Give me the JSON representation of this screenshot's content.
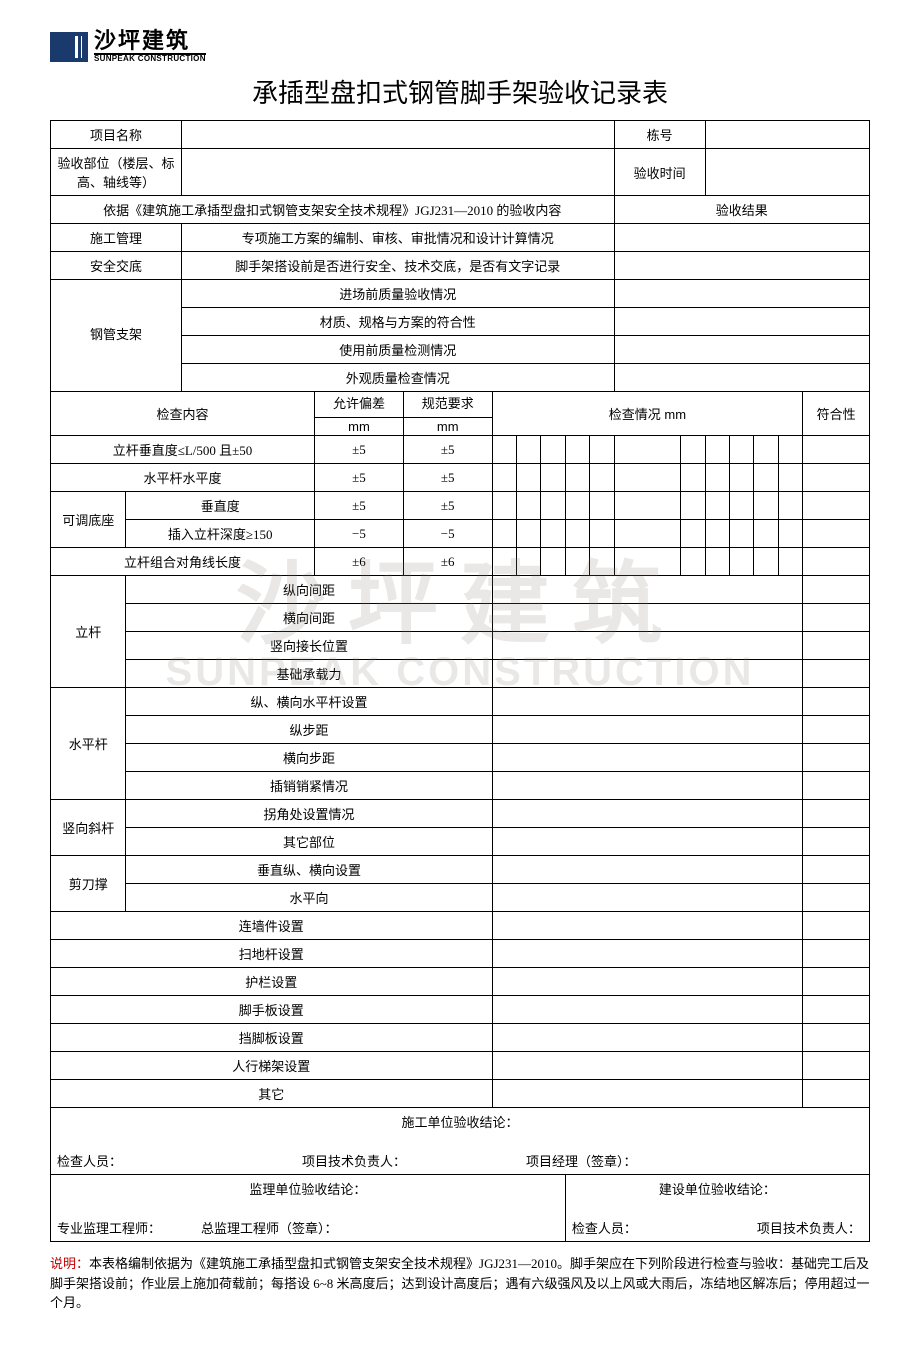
{
  "logo": {
    "cn": "沙坪建筑",
    "en": "SUNPEAK CONSTRUCTION"
  },
  "title": "承插型盘扣式钢管脚手架验收记录表",
  "header": {
    "project_name_label": "项目名称",
    "building_no_label": "栋号",
    "accept_part_label": "验收部位（楼层、标高、轴线等）",
    "accept_time_label": "验收时间",
    "basis_label": "依据《建筑施工承插型盘扣式钢管支架安全技术规程》JGJ231—2010 的验收内容",
    "accept_result_label": "验收结果"
  },
  "mgmt": {
    "construction_mgmt_label": "施工管理",
    "construction_mgmt_desc": "专项施工方案的编制、审核、审批情况和设计计算情况",
    "safety_brief_label": "安全交底",
    "safety_brief_desc": "脚手架搭设前是否进行安全、技术交底，是否有文字记录"
  },
  "steel": {
    "group_label": "钢管支架",
    "rows": [
      "进场前质量验收情况",
      "材质、规格与方案的符合性",
      "使用前质量检测情况",
      "外观质量检查情况"
    ]
  },
  "check_header": {
    "content": "检查内容",
    "allow_dev": "允许偏差",
    "unit": "mm",
    "std_req": "规范要求",
    "status": "检查情况",
    "status_unit": " mm",
    "conform": "符合性"
  },
  "dev_rows": [
    {
      "label": "立杆垂直度≤L/500 且±50",
      "allow": "±5",
      "std": "±5",
      "span": 2
    },
    {
      "label": "水平杆水平度",
      "allow": "±5",
      "std": "±5",
      "span": 2
    },
    {
      "group": "可调底座",
      "label": "垂直度",
      "allow": "±5",
      "std": "±5"
    },
    {
      "label": "插入立杆深度≥150",
      "allow": "−5",
      "std": "−5"
    },
    {
      "label": "立杆组合对角线长度",
      "allow": "±6",
      "std": "±6",
      "span": 2
    }
  ],
  "groups": [
    {
      "name": "立杆",
      "items": [
        "纵向间距",
        "横向间距",
        "竖向接长位置",
        "基础承载力"
      ]
    },
    {
      "name": "水平杆",
      "items": [
        "纵、横向水平杆设置",
        "纵步距",
        "横向步距",
        "插销销紧情况"
      ]
    },
    {
      "name": "竖向斜杆",
      "items": [
        "拐角处设置情况",
        "其它部位"
      ]
    },
    {
      "name": "剪刀撑",
      "items": [
        "垂直纵、横向设置",
        "水平向"
      ]
    }
  ],
  "single_rows": [
    "连墙件设置",
    "扫地杆设置",
    "护栏设置",
    "脚手板设置",
    "挡脚板设置",
    "人行梯架设置",
    "其它"
  ],
  "sign": {
    "construction_conclusion": "施工单位验收结论：",
    "inspector": "检查人员：",
    "tech_lead": "项目技术负责人：",
    "pm_seal": "项目经理（签章）：",
    "supervision_conclusion": "监理单位验收结论：",
    "owner_conclusion": "建设单位验收结论：",
    "pro_supervisor": "专业监理工程师：",
    "chief_supervisor": "总监理工程师（签章）：",
    "owner_inspector": "检查人员：",
    "owner_tech_lead": "项目技术负责人："
  },
  "note": {
    "lead": "说明：",
    "body": "本表格编制依据为《建筑施工承插型盘扣式钢管支架安全技术规程》JGJ231—2010。脚手架应在下列阶段进行检查与验收：基础完工后及脚手架搭设前；作业层上施加荷载前；每搭设 6~8 米高度后；达到设计高度后；遇有六级强风及以上风或大雨后，冻结地区解冻后；停用超过一个月。"
  },
  "watermark": {
    "cn": "沙坪建筑",
    "en": "SUNPEAK CONSTRUCTION"
  },
  "colors": {
    "note_lead": "#c00000",
    "border": "#000000",
    "logo_bg": "#1a3a6e"
  }
}
